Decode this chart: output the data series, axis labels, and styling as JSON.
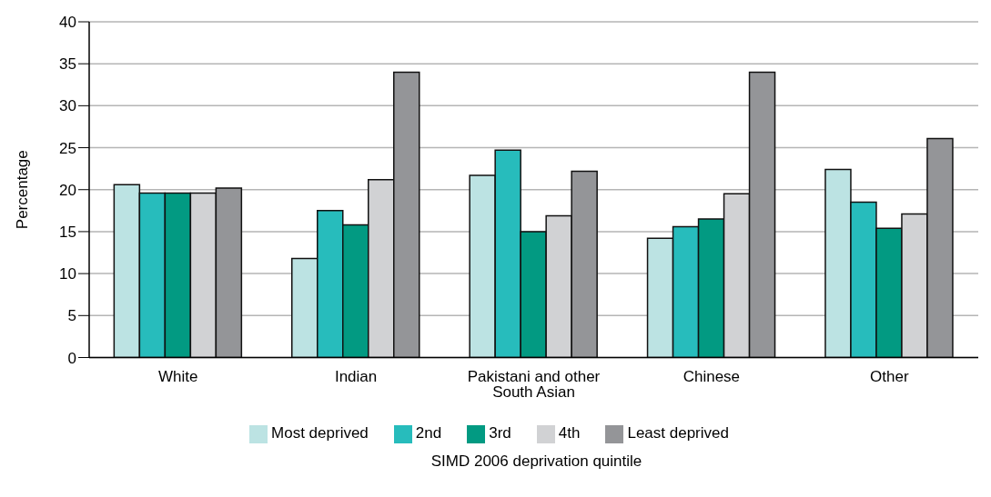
{
  "chart_data": {
    "type": "bar",
    "xlabel": "SIMD 2006 deprivation quintile",
    "ylabel": "Percentage",
    "categories": [
      "White",
      "Indian",
      "Pakistani and other South Asian",
      "Chinese",
      "Other"
    ],
    "series": [
      {
        "name": "Most deprived",
        "color": "#bce3e3",
        "values": [
          20.6,
          11.8,
          21.7,
          14.2,
          22.4
        ]
      },
      {
        "name": "2nd",
        "color": "#27bcbc",
        "values": [
          19.6,
          17.5,
          24.7,
          15.6,
          18.5
        ]
      },
      {
        "name": "3rd",
        "color": "#029a82",
        "values": [
          19.6,
          15.8,
          15.0,
          16.5,
          15.4
        ]
      },
      {
        "name": "4th",
        "color": "#d1d2d4",
        "values": [
          19.6,
          21.2,
          16.9,
          19.5,
          17.1
        ]
      },
      {
        "name": "Least deprived",
        "color": "#949598",
        "values": [
          20.2,
          34.0,
          22.2,
          34.0,
          26.1
        ]
      }
    ],
    "ylim": [
      0,
      40
    ],
    "yticks": [
      0,
      5,
      10,
      15,
      20,
      25,
      30,
      35,
      40
    ],
    "grid": "y",
    "legend": "bottom"
  }
}
